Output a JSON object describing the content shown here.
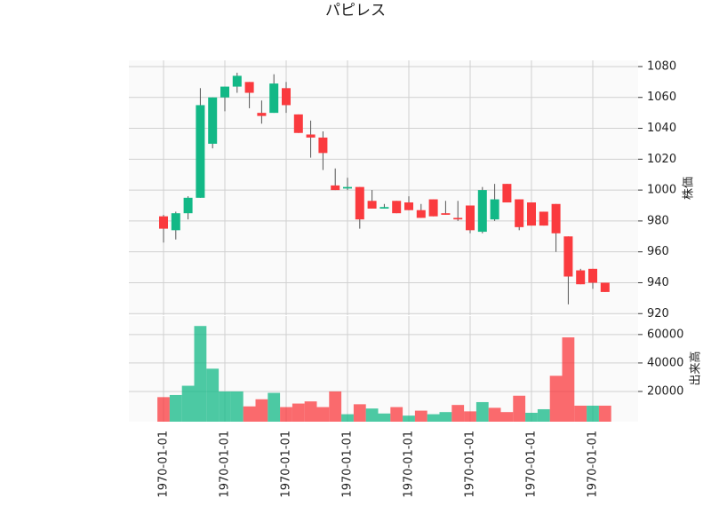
{
  "chart_data": {
    "type": "candlestick",
    "title": "パピレス",
    "x": [
      "1970-01-01",
      null,
      null,
      null,
      null,
      "1970-01-01",
      null,
      null,
      null,
      null,
      "1970-01-01",
      null,
      null,
      null,
      null,
      "1970-01-01",
      null,
      null,
      null,
      null,
      "1970-01-01",
      null,
      null,
      null,
      null,
      "1970-01-01",
      null,
      null,
      null,
      null,
      "1970-01-01",
      null,
      null,
      null,
      null,
      "1970-01-01",
      null
    ],
    "open": [
      983,
      974,
      985,
      995,
      1030,
      1060,
      1067,
      1070,
      1050,
      1050,
      1066,
      1049,
      1036,
      1034,
      1003,
      1001,
      1002,
      993,
      988,
      993,
      992,
      987,
      994,
      985,
      982,
      990,
      973,
      981,
      1004,
      994,
      992,
      986,
      991,
      970,
      948,
      949,
      940
    ],
    "high": [
      984,
      986,
      996,
      1066,
      1060,
      1067,
      1076,
      1070,
      1058,
      1075,
      1070,
      1049,
      1045,
      1038,
      1014,
      1008,
      1002,
      1000,
      991,
      993,
      996,
      991,
      994,
      993,
      993,
      990,
      1002,
      1004,
      1004,
      994,
      992,
      986,
      991,
      970,
      949,
      949,
      940
    ],
    "low": [
      966,
      968,
      981,
      995,
      1027,
      1051,
      1063,
      1053,
      1043,
      1050,
      1050,
      1037,
      1021,
      1013,
      1000,
      1000,
      975,
      988,
      988,
      985,
      987,
      982,
      983,
      984,
      980,
      972,
      972,
      980,
      992,
      974,
      977,
      977,
      960,
      926,
      939,
      936,
      934
    ],
    "close": [
      975,
      985,
      995,
      1055,
      1060,
      1067,
      1074,
      1063,
      1048,
      1069,
      1055,
      1037,
      1034,
      1024,
      1000,
      1002,
      981,
      988,
      989,
      985,
      987,
      982,
      983,
      984,
      981,
      974,
      1000,
      994,
      992,
      976,
      977,
      977,
      972,
      944,
      939,
      940,
      934
    ],
    "volume": [
      16000,
      17500,
      24000,
      66000,
      36000,
      20000,
      20000,
      9500,
      14500,
      19000,
      9000,
      11500,
      13000,
      9000,
      20000,
      4000,
      11000,
      8000,
      4500,
      9000,
      3000,
      6500,
      4000,
      5500,
      10500,
      6000,
      12500,
      8500,
      5500,
      17000,
      5000,
      7500,
      31000,
      58000,
      10000,
      10000,
      10000
    ],
    "up_color": "#12b886",
    "down_color": "#fa3a3e",
    "ylim": [
      919,
      1084
    ],
    "yticks": [
      920,
      940,
      960,
      980,
      1000,
      1020,
      1040,
      1060,
      1080
    ],
    "ylabel": "株価",
    "volume_ylim": [
      0,
      73000
    ],
    "volume_yticks": [
      20000,
      40000,
      60000
    ],
    "volume_ylabel": "出来高",
    "grid": true
  }
}
